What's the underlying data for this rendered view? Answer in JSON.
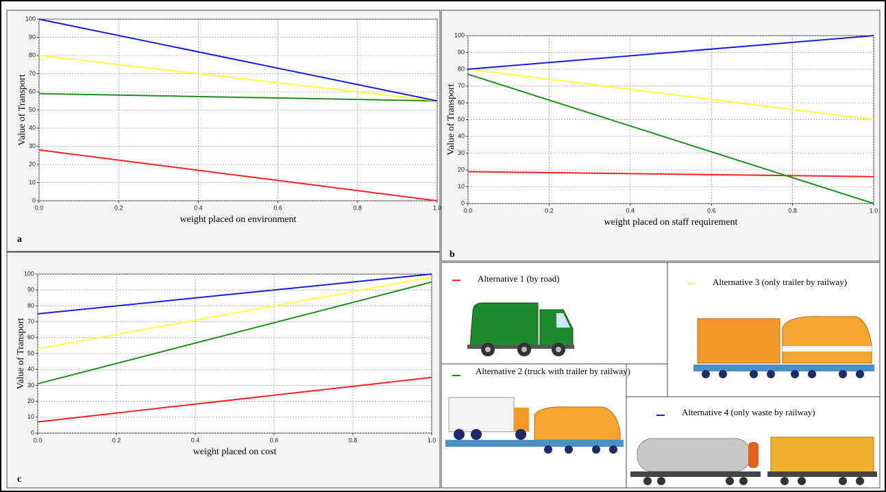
{
  "chart_data": [
    {
      "type": "line",
      "label": "a",
      "xlabel": "weight placed on environment",
      "ylabel": "Value of Transport",
      "x": [
        0,
        1
      ],
      "xlim": [
        0,
        1
      ],
      "ylim": [
        0,
        100
      ],
      "xticks": [
        {
          "value": 0,
          "label": "0.0"
        },
        0.2,
        0.4,
        0.6,
        0.8,
        {
          "value": 1,
          "label": "1.0"
        }
      ],
      "yticks": [
        0,
        10,
        20,
        30,
        40,
        50,
        60,
        70,
        80,
        90,
        100
      ],
      "grid": true,
      "series": [
        {
          "color": "#ff2020",
          "values": [
            28,
            0
          ]
        },
        {
          "color": "#1e8c1e",
          "values": [
            59,
            55
          ]
        },
        {
          "color": "#ffff40",
          "values": [
            80,
            55
          ]
        },
        {
          "color": "#1a1ae6",
          "values": [
            100,
            55
          ]
        }
      ]
    },
    {
      "type": "line",
      "label": "b",
      "xlabel": "weight placed on staff requirement",
      "ylabel": "Value of Transport",
      "x": [
        0,
        1
      ],
      "xlim": [
        0,
        1
      ],
      "ylim": [
        0,
        100
      ],
      "xticks": [
        {
          "value": 0,
          "label": "0.0"
        },
        0.2,
        0.4,
        0.6,
        0.8,
        {
          "value": 1,
          "label": "1.0"
        }
      ],
      "yticks": [
        0,
        10,
        20,
        30,
        40,
        50,
        60,
        70,
        80,
        90,
        100
      ],
      "grid": true,
      "series": [
        {
          "color": "#ff2020",
          "values": [
            19,
            16
          ]
        },
        {
          "color": "#1e8c1e",
          "values": [
            77,
            0
          ]
        },
        {
          "color": "#ffff40",
          "values": [
            80,
            50
          ]
        },
        {
          "color": "#1a1ae6",
          "values": [
            80,
            100
          ]
        }
      ]
    },
    {
      "type": "line",
      "label": "c",
      "xlabel": "weight placed on cost",
      "ylabel": "Value of Transport",
      "x": [
        0,
        1
      ],
      "xlim": [
        0,
        1
      ],
      "ylim": [
        0,
        100
      ],
      "xticks": [
        {
          "value": 0,
          "label": "0.0"
        },
        0.2,
        0.4,
        0.6,
        0.8,
        {
          "value": 1,
          "label": "1.0"
        }
      ],
      "yticks": [
        0,
        10,
        20,
        30,
        40,
        50,
        60,
        70,
        80,
        90,
        100
      ],
      "grid": true,
      "series": [
        {
          "color": "#ff2020",
          "values": [
            7,
            35
          ]
        },
        {
          "color": "#1e8c1e",
          "values": [
            31,
            95
          ]
        },
        {
          "color": "#ffff40",
          "values": [
            53,
            98
          ]
        },
        {
          "color": "#1a1ae6",
          "values": [
            75,
            100
          ]
        }
      ]
    }
  ],
  "legend": [
    {
      "name": "Alternative 1 (by road)",
      "color": "#ff2020"
    },
    {
      "name": "Alternative 2 (truck with trailer by railway)",
      "color": "#1e8c1e"
    },
    {
      "name": "Alternative 3 (only trailer by railway)",
      "color": "#ffff40"
    },
    {
      "name": "Alternative 4 (only waste by railway)",
      "color": "#1a1ae6"
    }
  ]
}
